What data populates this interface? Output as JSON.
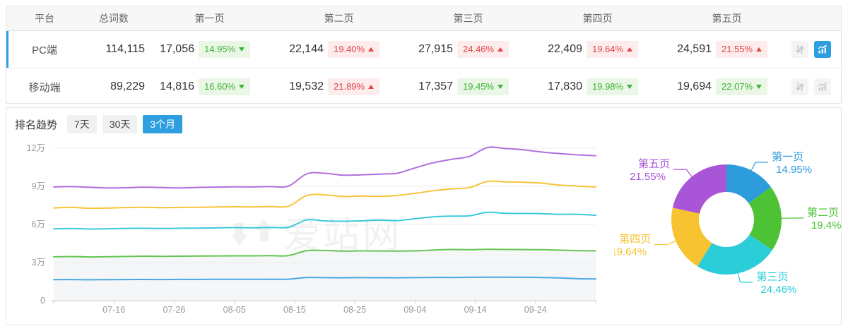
{
  "table": {
    "columns": [
      "平台",
      "总词数",
      "第一页",
      "第二页",
      "第三页",
      "第四页",
      "第五页"
    ],
    "rows": [
      {
        "platform": "PC端",
        "total": "114,115",
        "active": true,
        "pages": [
          {
            "count": "17,056",
            "pct": "14.95%",
            "dir": "down",
            "tone": "green"
          },
          {
            "count": "22,144",
            "pct": "19.40%",
            "dir": "up",
            "tone": "red"
          },
          {
            "count": "27,915",
            "pct": "24.46%",
            "dir": "up",
            "tone": "red"
          },
          {
            "count": "22,409",
            "pct": "19.64%",
            "dir": "up",
            "tone": "red"
          },
          {
            "count": "24,591",
            "pct": "21.55%",
            "dir": "up",
            "tone": "red"
          }
        ],
        "actions": {
          "sort_active": false,
          "trend_active": true
        }
      },
      {
        "platform": "移动端",
        "total": "89,229",
        "active": false,
        "pages": [
          {
            "count": "14,816",
            "pct": "16.60%",
            "dir": "down",
            "tone": "green"
          },
          {
            "count": "19,532",
            "pct": "21.89%",
            "dir": "up",
            "tone": "red"
          },
          {
            "count": "17,357",
            "pct": "19.45%",
            "dir": "down",
            "tone": "green"
          },
          {
            "count": "17,830",
            "pct": "19.98%",
            "dir": "down",
            "tone": "green"
          },
          {
            "count": "19,694",
            "pct": "22.07%",
            "dir": "down",
            "tone": "green"
          }
        ],
        "actions": {
          "sort_active": false,
          "trend_active": false
        }
      }
    ]
  },
  "trend": {
    "label": "排名趋势",
    "tabs": [
      {
        "label": "7天",
        "active": false
      },
      {
        "label": "30天",
        "active": false
      },
      {
        "label": "3个月",
        "active": true
      }
    ]
  },
  "watermark": {
    "text": "爱站网"
  },
  "colors": {
    "accent": "#2D9FE0",
    "badge_green_text": "#3CB332",
    "badge_green_bg": "#EAF7E6",
    "badge_red_text": "#E54545",
    "badge_red_bg": "#FDECEC"
  },
  "chart_data": [
    {
      "type": "line",
      "title": "排名趋势 (3个月)",
      "note": "stacked cumulative keyword counts; y positions are running totals of pages 1-5",
      "stacked_cumulative": true,
      "grid": true,
      "x": [
        "07-06",
        "07-09",
        "07-12",
        "07-15",
        "07-18",
        "07-21",
        "07-24",
        "07-27",
        "07-30",
        "08-02",
        "08-05",
        "08-08",
        "08-11",
        "08-14",
        "08-17",
        "08-20",
        "08-23",
        "08-26",
        "08-29",
        "09-01",
        "09-04",
        "09-07",
        "09-10",
        "09-13",
        "09-16",
        "09-19",
        "09-22",
        "09-25",
        "09-28",
        "10-01",
        "10-04"
      ],
      "x_axis_ticks_shown": [
        "07-16",
        "07-26",
        "08-05",
        "08-15",
        "08-25",
        "09-04",
        "09-14",
        "09-24"
      ],
      "y_ticks": {
        "labels": [
          "0",
          "3万",
          "6万",
          "9万",
          "12万"
        ],
        "values": [
          0,
          30000,
          60000,
          90000,
          120000
        ]
      },
      "ylim": [
        0,
        130000
      ],
      "area_fill_under": "第二页",
      "area_fill_color": "#f5f6f7",
      "series": [
        {
          "name": "第一页",
          "color": "#4AA7E5",
          "values": [
            16500,
            16600,
            16450,
            16500,
            16600,
            16650,
            16600,
            16700,
            16700,
            16750,
            16800,
            16800,
            16850,
            16900,
            18200,
            18100,
            18000,
            18100,
            18050,
            18000,
            18100,
            18300,
            18250,
            18400,
            18500,
            18450,
            18400,
            18200,
            17900,
            17300,
            17056
          ]
        },
        {
          "name": "第二页",
          "color": "#63C653",
          "values": [
            34500,
            34700,
            34400,
            34600,
            34800,
            35000,
            34900,
            35000,
            35100,
            35200,
            35300,
            35300,
            35400,
            35500,
            39300,
            39500,
            39000,
            39200,
            39100,
            39000,
            39200,
            39800,
            40300,
            40100,
            40400,
            40300,
            40200,
            40100,
            39800,
            39400,
            39200
          ]
        },
        {
          "name": "第三页",
          "color": "#3CC9DD",
          "values": [
            56500,
            56800,
            56400,
            56600,
            56900,
            57000,
            56800,
            57000,
            57100,
            57300,
            57500,
            57400,
            57600,
            57800,
            63500,
            62800,
            62500,
            62800,
            63400,
            63000,
            64500,
            66000,
            66500,
            66800,
            69500,
            68700,
            68600,
            68500,
            67900,
            68000,
            67115
          ]
        },
        {
          "name": "第四页",
          "color": "#F9C43C",
          "values": [
            73000,
            73400,
            72700,
            72900,
            73300,
            73500,
            73200,
            73400,
            73500,
            73700,
            73900,
            73800,
            74100,
            74400,
            82800,
            83300,
            82000,
            82300,
            82100,
            82800,
            84500,
            86500,
            88000,
            89000,
            93800,
            93500,
            93200,
            92500,
            91000,
            90200,
            89524
          ]
        },
        {
          "name": "第五页",
          "color": "#B16FDF",
          "values": [
            89500,
            89800,
            89200,
            88700,
            88900,
            89300,
            89000,
            88700,
            89100,
            89400,
            89600,
            89500,
            89800,
            90200,
            99800,
            100300,
            98800,
            99000,
            99600,
            100300,
            104500,
            108500,
            111200,
            113500,
            120500,
            119800,
            118700,
            117000,
            115800,
            114800,
            114115
          ]
        }
      ]
    },
    {
      "type": "pie",
      "donut": true,
      "title": "页面占比",
      "slices": [
        {
          "label": "第一页",
          "value_pct": 14.95,
          "pct_label": "14.95%",
          "color": "#2D9CDB"
        },
        {
          "label": "第二页",
          "value_pct": 19.4,
          "pct_label": "19.4%",
          "color": "#4EC235"
        },
        {
          "label": "第三页",
          "value_pct": 24.46,
          "pct_label": "24.46%",
          "color": "#2BCDD8"
        },
        {
          "label": "第四页",
          "value_pct": 19.64,
          "pct_label": "19.64%",
          "color": "#F7C331"
        },
        {
          "label": "第五页",
          "value_pct": 21.55,
          "pct_label": "21.55%",
          "color": "#A855D8"
        }
      ]
    }
  ]
}
